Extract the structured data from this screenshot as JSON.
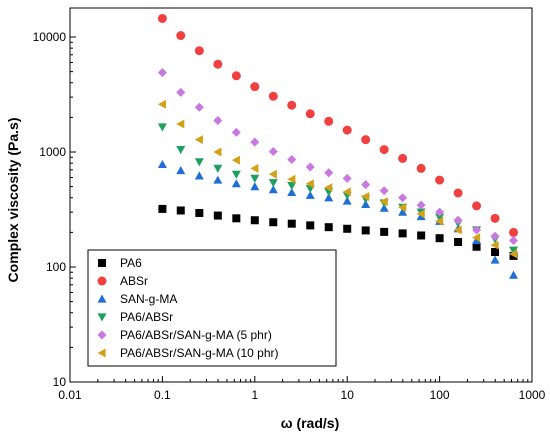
{
  "chart_data": {
    "type": "scatter",
    "title": "",
    "xlabel": "ω (rad/s)",
    "ylabel": "Complex viscosity (Pa.s)",
    "xscale": "log",
    "yscale": "log",
    "xlim": [
      0.01,
      1000
    ],
    "ylim": [
      10,
      20000
    ],
    "x_ticks": [
      0.01,
      0.1,
      1,
      10,
      100,
      1000
    ],
    "x_tick_labels": [
      "0.01",
      "0.1",
      "1",
      "10",
      "100",
      "1000"
    ],
    "y_ticks": [
      10,
      100,
      1000,
      10000
    ],
    "y_tick_labels": [
      "10",
      "100",
      "1000",
      "10000"
    ],
    "grid": false,
    "legend_position": "bottom-left",
    "x": [
      0.1,
      0.158,
      0.251,
      0.398,
      0.631,
      1,
      1.585,
      2.512,
      3.981,
      6.31,
      10,
      15.85,
      25.12,
      39.81,
      63.1,
      100,
      158.5,
      251.2,
      398.1,
      631
    ],
    "series": [
      {
        "name": "PA6",
        "color": "#000000",
        "marker": "square",
        "values": [
          320,
          310,
          295,
          280,
          265,
          255,
          245,
          238,
          230,
          222,
          215,
          208,
          202,
          196,
          188,
          178,
          165,
          150,
          135,
          125
        ]
      },
      {
        "name": "ABSr",
        "color": "#f04040",
        "marker": "circle",
        "values": [
          14500,
          10300,
          7600,
          5800,
          4600,
          3700,
          3050,
          2550,
          2150,
          1850,
          1550,
          1280,
          1050,
          880,
          720,
          570,
          440,
          340,
          265,
          200
        ]
      },
      {
        "name": "SAN-g-MA",
        "color": "#1f6fd6",
        "marker": "triangle-up",
        "values": [
          780,
          690,
          620,
          570,
          530,
          500,
          470,
          445,
          420,
          400,
          375,
          350,
          325,
          300,
          275,
          250,
          215,
          170,
          115,
          85
        ]
      },
      {
        "name": "PA6/ABSr",
        "color": "#1ea060",
        "marker": "triangle-down",
        "values": [
          1650,
          1050,
          820,
          720,
          640,
          590,
          540,
          510,
          480,
          450,
          420,
          390,
          360,
          330,
          300,
          270,
          240,
          210,
          175,
          140
        ]
      },
      {
        "name": "PA6/ABSr/SAN-g-MA (5 phr)",
        "color": "#c878e0",
        "marker": "diamond",
        "values": [
          4900,
          3300,
          2450,
          1880,
          1480,
          1220,
          1010,
          860,
          740,
          660,
          590,
          520,
          460,
          400,
          345,
          300,
          255,
          210,
          185,
          170
        ]
      },
      {
        "name": "PA6/ABSr/SAN-g-MA (10 phr)",
        "color": "#d4a017",
        "marker": "triangle-left",
        "values": [
          2600,
          1750,
          1280,
          1000,
          850,
          720,
          640,
          580,
          530,
          490,
          450,
          410,
          370,
          330,
          290,
          250,
          210,
          180,
          155,
          130
        ]
      }
    ]
  }
}
